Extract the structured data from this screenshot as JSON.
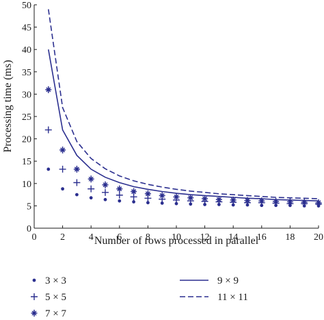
{
  "chart_data": {
    "type": "line",
    "xlabel": "Number of rows processed in parallel",
    "ylabel": "Processing time (ms)",
    "xlim": [
      0,
      20
    ],
    "ylim": [
      0,
      50
    ],
    "xticks": [
      "0",
      "2",
      "4",
      "6",
      "8",
      "10",
      "12",
      "14",
      "16",
      "18",
      "20"
    ],
    "yticks": [
      "0",
      "5",
      "10",
      "15",
      "20",
      "25",
      "30",
      "35",
      "40",
      "45",
      "50"
    ],
    "grid": false,
    "legend_position": "bottom",
    "color": "#2b2f8f",
    "x": [
      1,
      2,
      3,
      4,
      5,
      6,
      7,
      8,
      9,
      10,
      11,
      12,
      13,
      14,
      15,
      16,
      17,
      18,
      19,
      20
    ],
    "series": [
      {
        "name": "3 × 3",
        "marker": "dot",
        "style": "markers",
        "values": [
          13.2,
          8.8,
          7.5,
          6.8,
          6.4,
          6.1,
          5.9,
          5.7,
          5.6,
          5.5,
          5.4,
          5.3,
          5.3,
          5.2,
          5.2,
          5.1,
          5.1,
          5.1,
          5.0,
          5.0
        ]
      },
      {
        "name": "5 × 5",
        "marker": "plus",
        "style": "markers",
        "values": [
          22,
          13.2,
          10.2,
          8.8,
          8.0,
          7.4,
          7.0,
          6.7,
          6.5,
          6.3,
          6.1,
          6.0,
          5.9,
          5.8,
          5.7,
          5.7,
          5.6,
          5.5,
          5.5,
          5.4
        ]
      },
      {
        "name": "7 × 7",
        "marker": "star",
        "style": "markers",
        "values": [
          31,
          17.5,
          13.2,
          11.0,
          9.7,
          8.8,
          8.2,
          7.7,
          7.3,
          7.0,
          6.8,
          6.6,
          6.4,
          6.3,
          6.2,
          6.1,
          6.0,
          5.9,
          5.8,
          5.7
        ]
      },
      {
        "name": "9 × 9",
        "marker": "none",
        "style": "solid",
        "values": [
          40,
          22,
          16.3,
          13.2,
          11.4,
          10.2,
          9.3,
          8.7,
          8.2,
          7.8,
          7.5,
          7.3,
          7.1,
          6.9,
          6.7,
          6.6,
          6.4,
          6.3,
          6.2,
          6.1
        ]
      },
      {
        "name": "11 × 11",
        "marker": "none",
        "style": "dashed",
        "values": [
          49,
          27,
          19.4,
          15.6,
          13.3,
          11.7,
          10.6,
          9.8,
          9.2,
          8.7,
          8.3,
          8.0,
          7.7,
          7.5,
          7.3,
          7.1,
          6.9,
          6.8,
          6.7,
          6.6
        ]
      }
    ]
  }
}
